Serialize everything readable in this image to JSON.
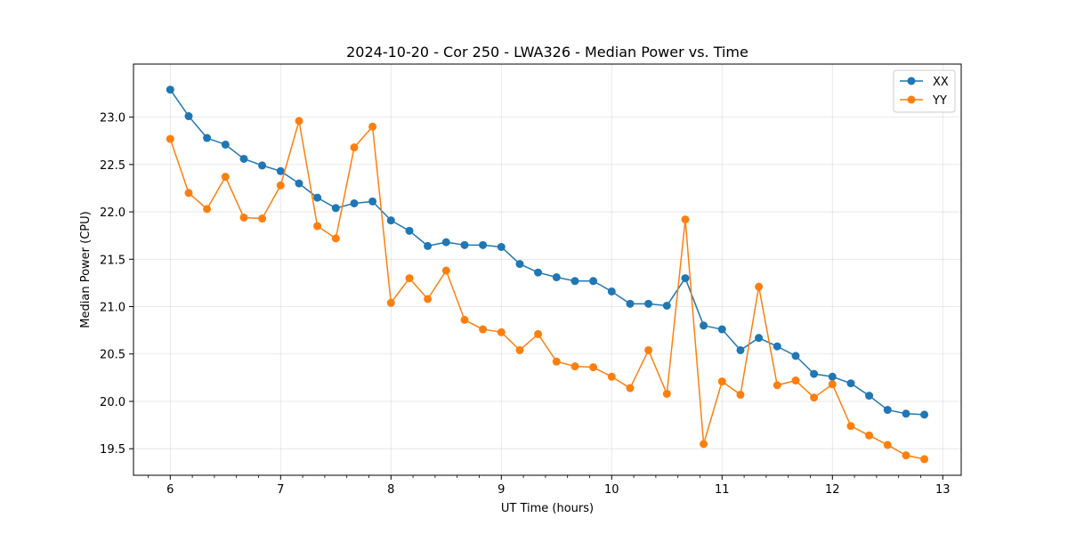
{
  "chart_data": {
    "type": "line",
    "title": "2024-10-20 - Cor 250 - LWA326 - Median Power vs. Time",
    "xlabel": "UT Time (hours)",
    "ylabel": "Median Power (CPU)",
    "xlim": [
      5.667,
      13.167
    ],
    "ylim": [
      19.22,
      23.56
    ],
    "xticks": [
      6,
      7,
      8,
      9,
      10,
      11,
      12,
      13
    ],
    "xtick_labels": [
      "6",
      "7",
      "8",
      "9",
      "10",
      "11",
      "12",
      "13"
    ],
    "yticks": [
      19.5,
      20.0,
      20.5,
      21.0,
      21.5,
      22.0,
      22.5,
      23.0
    ],
    "ytick_labels": [
      "19.5",
      "20.0",
      "20.5",
      "21.0",
      "21.5",
      "22.0",
      "22.5",
      "23.0"
    ],
    "grid": true,
    "legend_position": "top-right",
    "x": [
      6.0,
      6.167,
      6.333,
      6.5,
      6.667,
      6.833,
      7.0,
      7.167,
      7.333,
      7.5,
      7.667,
      7.833,
      8.0,
      8.167,
      8.333,
      8.5,
      8.667,
      8.833,
      9.0,
      9.167,
      9.333,
      9.5,
      9.667,
      9.833,
      10.0,
      10.167,
      10.333,
      10.5,
      10.667,
      10.833,
      11.0,
      11.167,
      11.333,
      11.5,
      11.667,
      11.833,
      12.0,
      12.167,
      12.333,
      12.5,
      12.667,
      12.833
    ],
    "series": [
      {
        "name": "XX",
        "color": "#1f77b4",
        "values": [
          23.29,
          23.01,
          22.78,
          22.71,
          22.56,
          22.49,
          22.43,
          22.3,
          22.15,
          22.04,
          22.09,
          22.11,
          21.91,
          21.8,
          21.64,
          21.68,
          21.65,
          21.65,
          21.63,
          21.45,
          21.36,
          21.31,
          21.27,
          21.27,
          21.16,
          21.03,
          21.03,
          21.01,
          21.3,
          20.8,
          20.76,
          20.54,
          20.67,
          20.58,
          20.48,
          20.29,
          20.26,
          20.19,
          20.06,
          19.91,
          19.87,
          19.86
        ]
      },
      {
        "name": "YY",
        "color": "#ff7f0e",
        "values": [
          22.77,
          22.2,
          22.03,
          22.37,
          21.94,
          21.93,
          22.28,
          22.96,
          21.85,
          21.72,
          22.68,
          22.9,
          21.04,
          21.3,
          21.08,
          21.38,
          20.86,
          20.76,
          20.73,
          20.54,
          20.71,
          20.42,
          20.37,
          20.36,
          20.26,
          20.14,
          20.54,
          20.08,
          21.92,
          19.55,
          20.21,
          20.07,
          21.21,
          20.17,
          20.22,
          20.04,
          20.18,
          19.74,
          19.64,
          19.54,
          19.43,
          19.39
        ]
      }
    ]
  }
}
